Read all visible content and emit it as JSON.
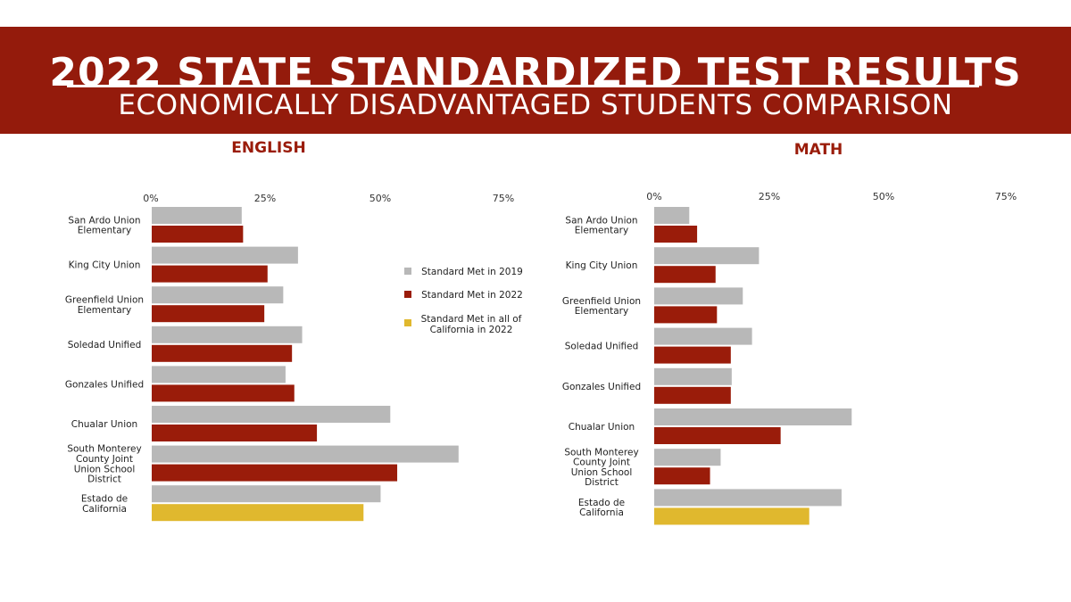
{
  "header": {
    "title": "2022 STATE STANDARDIZED TEST RESULTS",
    "subtitle": "ECONOMICALLY DISADVANTAGED STUDENTS COMPARISON"
  },
  "colors": {
    "banner": "#941b0c",
    "series_2019": "#b8b8b8",
    "series_2022": "#9a1c0a",
    "series_state": "#e0b82e",
    "panel_title": "#9a1c0a"
  },
  "legend": [
    {
      "label": "Standard Met in 2019",
      "color": "#b8b8b8"
    },
    {
      "label": "Standard Met in 2022",
      "color": "#9a1c0a"
    },
    {
      "label": "Standard Met in all of California in 2022",
      "color": "#e0b82e"
    }
  ],
  "chart_data": [
    {
      "type": "bar",
      "orientation": "horizontal",
      "title": "ENGLISH",
      "xlim": [
        0,
        75
      ],
      "ticks": [
        "0%",
        "25%",
        "50%",
        "75%"
      ],
      "tick_values": [
        0,
        25,
        50,
        75
      ],
      "categories": [
        [
          "San Ardo Union",
          "Elementary"
        ],
        [
          "King City Union"
        ],
        [
          "Greenfield Union",
          "Elementary"
        ],
        [
          "Soledad Unified"
        ],
        [
          "Gonzales Unified"
        ],
        [
          "Chualar Union"
        ],
        [
          "South Monterey",
          "County Joint",
          "Union School",
          "District"
        ],
        [
          "Estado de",
          "California"
        ]
      ],
      "series": [
        {
          "name": "Standard Met in 2019",
          "values": [
            19.5,
            31.7,
            28.5,
            32.6,
            29.0,
            51.7,
            66.5,
            49.6
          ]
        },
        {
          "name": "Standard Met in 2022",
          "values": [
            19.8,
            25.1,
            24.4,
            30.4,
            30.9,
            35.8,
            53.2,
            45.9
          ]
        }
      ],
      "state_series_index": 7
    },
    {
      "type": "bar",
      "orientation": "horizontal",
      "title": "MATH",
      "xlim": [
        0,
        75
      ],
      "ticks": [
        "0%",
        "25%",
        "50%",
        "75%"
      ],
      "tick_values": [
        0,
        25,
        50,
        75
      ],
      "categories": [
        [
          "San Ardo Union",
          "Elementary"
        ],
        [
          "King City Union"
        ],
        [
          "Greenfield Union",
          "Elementary"
        ],
        [
          "Soledad Unified"
        ],
        [
          "Gonzales Unified"
        ],
        [
          "Chualar Union"
        ],
        [
          "South Monterey",
          "County Joint",
          "Union School",
          "District"
        ],
        [
          "Estado de",
          "California"
        ]
      ],
      "series": [
        {
          "name": "Standard Met in 2019",
          "values": [
            7.6,
            22.7,
            19.2,
            21.2,
            16.8,
            42.8,
            14.4,
            40.6
          ]
        },
        {
          "name": "Standard Met in 2022",
          "values": [
            9.3,
            13.3,
            13.6,
            16.6,
            16.6,
            27.4,
            12.1,
            33.6
          ]
        }
      ],
      "state_series_index": 7
    }
  ]
}
